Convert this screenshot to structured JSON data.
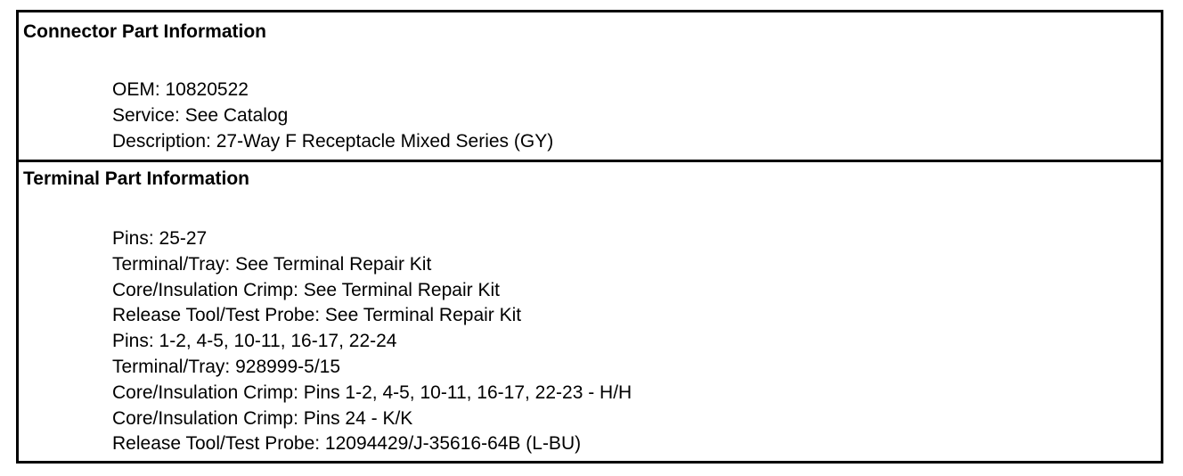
{
  "connector": {
    "title": "Connector Part Information",
    "lines": [
      "OEM: 10820522",
      "Service: See Catalog",
      "Description: 27-Way F Receptacle Mixed Series (GY)"
    ]
  },
  "terminal": {
    "title": "Terminal Part Information",
    "lines": [
      "Pins: 25-27",
      "Terminal/Tray: See Terminal Repair Kit",
      "Core/Insulation Crimp: See Terminal Repair Kit",
      "Release Tool/Test Probe: See Terminal Repair Kit",
      "Pins: 1-2, 4-5, 10-11, 16-17, 22-24",
      "Terminal/Tray: 928999-5/15",
      "Core/Insulation Crimp: Pins 1-2, 4-5, 10-11, 16-17, 22-23 - H/H",
      "Core/Insulation Crimp: Pins 24 - K/K",
      "Release Tool/Test Probe: 12094429/J-35616-64B (L-BU)"
    ]
  }
}
